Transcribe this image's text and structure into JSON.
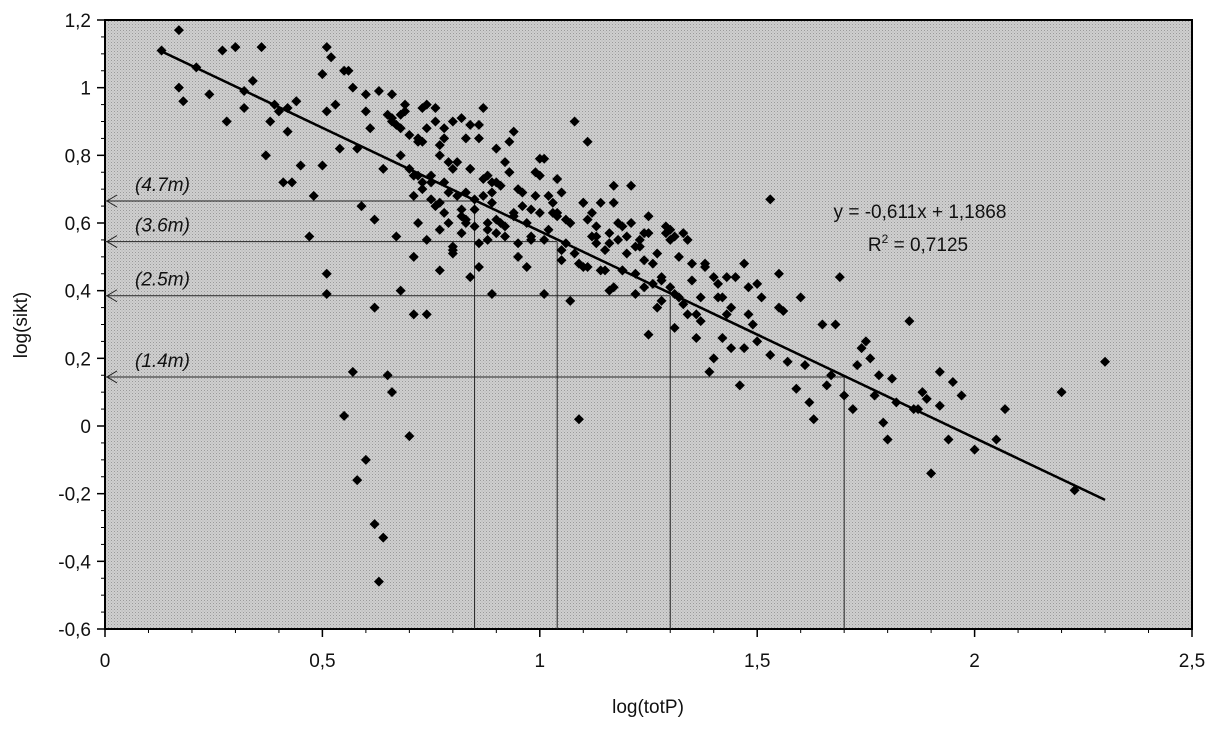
{
  "chart_data": {
    "type": "scatter",
    "title": "",
    "xlabel": "log(totP)",
    "ylabel": "log(sikt)",
    "xlim": [
      0,
      2.5
    ],
    "ylim": [
      -0.6,
      1.2
    ],
    "x_ticks": [
      "0",
      "0,5",
      "1",
      "1,5",
      "2",
      "2,5"
    ],
    "y_ticks": [
      "1,2",
      "1",
      "0,8",
      "0,6",
      "0,4",
      "0,2",
      "0",
      "-0,2",
      "-0,4",
      "-0,6"
    ],
    "grid": false,
    "legend": "none",
    "colors": {
      "plot_bg": "#c8c8c8",
      "marker": "#000000",
      "line": "#000000"
    },
    "trendline": {
      "slope": -0.611,
      "intercept": 1.1868,
      "x_range": [
        0.13,
        2.3
      ],
      "equation_label": "y = -0,611x + 1,1868",
      "r2_prefix": "R",
      "r2_sup": "2",
      "r2_suffix": " = 0,7125"
    },
    "depth_annotations": [
      {
        "label": "(4.7m)",
        "y": 0.665,
        "x": 0.85
      },
      {
        "label": "(3.6m)",
        "y": 0.545,
        "x": 1.04
      },
      {
        "label": "(2.5m)",
        "y": 0.385,
        "x": 1.3
      },
      {
        "label": "(1.4m)",
        "y": 0.145,
        "x": 1.7
      }
    ],
    "points_x": [
      0.13,
      0.17,
      0.17,
      0.18,
      0.21,
      0.24,
      0.27,
      0.28,
      0.3,
      0.32,
      0.32,
      0.34,
      0.36,
      0.37,
      0.38,
      0.39,
      0.4,
      0.41,
      0.42,
      0.42,
      0.43,
      0.44,
      0.45,
      0.48,
      0.5,
      0.5,
      0.51,
      0.51,
      0.51,
      0.52,
      0.53,
      0.54,
      0.55,
      0.56,
      0.57,
      0.58,
      0.59,
      0.6,
      0.6,
      0.61,
      0.62,
      0.63,
      0.64,
      0.65,
      0.66,
      0.66,
      0.67,
      0.67,
      0.68,
      0.68,
      0.69,
      0.7,
      0.7,
      0.71,
      0.71,
      0.72,
      0.72,
      0.73,
      0.73,
      0.74,
      0.74,
      0.75,
      0.75,
      0.76,
      0.76,
      0.77,
      0.77,
      0.78,
      0.78,
      0.79,
      0.79,
      0.8,
      0.8,
      0.81,
      0.81,
      0.82,
      0.82,
      0.83,
      0.83,
      0.84,
      0.84,
      0.85,
      0.85,
      0.86,
      0.86,
      0.87,
      0.87,
      0.88,
      0.88,
      0.89,
      0.89,
      0.9,
      0.9,
      0.91,
      0.92,
      0.92,
      0.93,
      0.94,
      0.95,
      0.96,
      0.97,
      0.98,
      0.99,
      1,
      1.01,
      1.02,
      1.03,
      1.04,
      1.05,
      1.06,
      1.07,
      1.08,
      1.09,
      1.1,
      1.11,
      1.12,
      1.13,
      1.14,
      1.15,
      1.16,
      1.17,
      1.18,
      1.19,
      1.2,
      1.21,
      1.22,
      1.23,
      1.24,
      1.25,
      1.26,
      1.27,
      1.28,
      1.29,
      1.3,
      1.31,
      1.32,
      1.33,
      1.35,
      1.37,
      1.38,
      1.4,
      1.41,
      1.42,
      1.43,
      1.44,
      1.45,
      1.47,
      1.48,
      1.49,
      1.5,
      1.51,
      1.53,
      1.55,
      1.57,
      1.6,
      1.62,
      1.65,
      1.67,
      1.7,
      1.72,
      1.75,
      1.77,
      1.78,
      1.8,
      1.85,
      1.88,
      1.9,
      1.92,
      1.95,
      1.97,
      2.05,
      2.07,
      2.2,
      2.23,
      2.3,
      0.58,
      0.62,
      0.63,
      0.64,
      0.68,
      0.69,
      0.71,
      0.72,
      0.73,
      0.74,
      0.76,
      0.77,
      0.78,
      0.79,
      0.8,
      0.82,
      0.83,
      0.84,
      0.86,
      0.87,
      0.88,
      0.9,
      0.91,
      0.93,
      0.94,
      0.96,
      0.98,
      1,
      1.02,
      1.04,
      1.06,
      1.08,
      1.1,
      1.12,
      1.14,
      1.16,
      1.18,
      1.2,
      1.22,
      1.24,
      1.26,
      1.28,
      1.3,
      1.32,
      1.34,
      1.36,
      1.38,
      1.4,
      1.43,
      1.46,
      1.5,
      1.53,
      1.56,
      1.59,
      1.63,
      1.66,
      1.69,
      1.73,
      1.76,
      1.79,
      1.82,
      1.86,
      1.89,
      1.92,
      0.55,
      0.6,
      0.66,
      0.7,
      0.72,
      0.75,
      0.77,
      0.8,
      0.82,
      0.85,
      0.88,
      0.9,
      0.93,
      0.95,
      0.97,
      0.99,
      1.01,
      1.03,
      1.05,
      1.07,
      1.09,
      1.11,
      1.13,
      1.15,
      1.17,
      1.19,
      1.21,
      1.23,
      1.25,
      1.27,
      1.29,
      1.31,
      1.33,
      1.35,
      1.37,
      1.39,
      1.41,
      1.44,
      1.47,
      0.65,
      0.68,
      0.71,
      0.74,
      0.77,
      0.8,
      0.83,
      0.86,
      0.89,
      0.92,
      0.95,
      0.98,
      1.01,
      1.04,
      1.07,
      1.1,
      1.13,
      1.16,
      1.19,
      1.22,
      1.25,
      1.28,
      1.31,
      1.34,
      0.47,
      0.51,
      0.57,
      0.62,
      0.66,
      0.73,
      0.78,
      0.84,
      0.89,
      0.94,
      1,
      1.05,
      1.11,
      1.17,
      1.24,
      1.3,
      1.36,
      1.42,
      1.48,
      1.55,
      1.61,
      1.68,
      1.74,
      1.81,
      1.87,
      1.94,
      2
    ],
    "points_y": [
      1.11,
      1.17,
      1,
      0.96,
      1.06,
      0.98,
      1.11,
      0.9,
      1.12,
      0.99,
      0.94,
      1.02,
      1.12,
      0.8,
      0.9,
      0.95,
      0.93,
      0.72,
      0.94,
      0.87,
      0.72,
      0.96,
      0.77,
      0.68,
      1.04,
      0.77,
      1.12,
      0.93,
      0.39,
      1.09,
      0.95,
      0.82,
      1.05,
      1.05,
      1,
      0.82,
      0.65,
      0.98,
      0.93,
      0.88,
      0.61,
      0.99,
      0.76,
      0.92,
      0.9,
      0.98,
      0.56,
      0.89,
      0.92,
      0.8,
      0.93,
      0.86,
      0.76,
      0.68,
      0.5,
      0.85,
      0.74,
      0.7,
      0.84,
      0.55,
      0.88,
      0.74,
      0.67,
      0.9,
      0.65,
      0.83,
      0.46,
      0.88,
      0.72,
      0.69,
      0.6,
      0.9,
      0.53,
      0.78,
      0.68,
      0.91,
      0.64,
      0.85,
      0.6,
      0.76,
      0.44,
      0.67,
      0.59,
      0.89,
      0.47,
      0.94,
      0.68,
      0.74,
      0.55,
      0.66,
      0.39,
      0.82,
      0.61,
      0.71,
      0.56,
      0.78,
      0.84,
      0.62,
      0.7,
      0.69,
      0.6,
      0.56,
      0.75,
      0.63,
      0.79,
      0.58,
      0.66,
      0.73,
      0.69,
      0.54,
      0.6,
      0.9,
      0.48,
      0.66,
      0.47,
      0.63,
      0.59,
      0.66,
      0.52,
      0.54,
      0.71,
      0.55,
      0.46,
      0.56,
      0.71,
      0.45,
      0.53,
      0.49,
      0.62,
      0.42,
      0.51,
      0.37,
      0.57,
      0.55,
      0.29,
      0.5,
      0.36,
      0.48,
      0.31,
      0.47,
      0.44,
      0.38,
      0.26,
      0.44,
      0.35,
      0.44,
      0.23,
      0.33,
      0.3,
      0.25,
      0.38,
      0.67,
      0.35,
      0.19,
      0.38,
      0.07,
      0.3,
      0.15,
      0.09,
      0.05,
      0.25,
      0.09,
      0.15,
      -0.04,
      0.31,
      0.1,
      -0.14,
      0.06,
      0.13,
      0.09,
      -0.04,
      0.05,
      0.1,
      -0.19,
      0.19,
      -0.16,
      -0.29,
      -0.46,
      -0.33,
      0.88,
      0.95,
      0.74,
      0.84,
      0.72,
      0.95,
      0.94,
      0.8,
      0.63,
      0.78,
      0.76,
      0.57,
      0.69,
      0.76,
      0.85,
      0.73,
      0.58,
      0.72,
      0.6,
      0.75,
      0.63,
      0.65,
      0.55,
      0.79,
      0.68,
      0.63,
      0.61,
      0.51,
      0.66,
      0.56,
      0.46,
      0.57,
      0.6,
      0.51,
      0.39,
      0.41,
      0.48,
      0.44,
      0.58,
      0.38,
      0.55,
      0.33,
      0.48,
      0.2,
      0.33,
      0.12,
      0.42,
      0.21,
      0.34,
      0.11,
      0.02,
      0.12,
      0.44,
      0.18,
      0.2,
      0.01,
      0.07,
      0.05,
      0.08,
      0.16,
      0.03,
      -0.1,
      0.1,
      -0.03,
      0.6,
      0.72,
      0.66,
      0.52,
      0.62,
      0.64,
      0.6,
      0.57,
      0.75,
      0.5,
      0.47,
      0.68,
      0.39,
      0.63,
      0.52,
      0.37,
      0.02,
      0.61,
      0.54,
      0.46,
      0.41,
      0.46,
      0.6,
      0.55,
      0.27,
      0.35,
      0.59,
      0.56,
      0.57,
      0.43,
      0.38,
      0.16,
      0.42,
      0.23,
      0.48,
      0.15,
      0.4,
      0.33,
      0.33,
      0.58,
      0.51,
      0.61,
      0.54,
      0.69,
      0.59,
      0.54,
      0.64,
      0.55,
      0.62,
      0.6,
      0.47,
      0.56,
      0.4,
      0.59,
      0.53,
      0.57,
      0.43,
      0.39,
      0.33,
      0.56,
      0.45,
      0.16,
      0.35,
      0.91,
      0.94,
      0.85,
      0.89,
      0.72,
      0.87,
      0.74,
      0.49,
      0.84,
      0.66,
      0.57,
      0.41,
      0.26,
      0.38,
      0.41,
      0.45,
      0.18,
      0.3,
      0.23,
      0.14,
      0.05,
      -0.04,
      -0.07,
      -0.14,
      -0.12,
      -0.12,
      -0.07
    ]
  }
}
